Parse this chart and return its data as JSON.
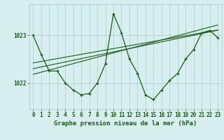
{
  "title": "Graphe pression niveau de la mer (hPa)",
  "bg_color": "#d6eeed",
  "grid_color": "#b0d4d0",
  "line_color": "#1a5c1a",
  "x_values": [
    0,
    1,
    2,
    3,
    4,
    5,
    6,
    7,
    8,
    9,
    10,
    11,
    12,
    13,
    14,
    15,
    16,
    17,
    18,
    19,
    20,
    21,
    22,
    23
  ],
  "main_data": [
    1023.0,
    1022.6,
    1022.25,
    1022.25,
    1022.0,
    1021.85,
    1021.75,
    1021.78,
    1022.0,
    1022.4,
    1023.45,
    1023.05,
    1022.5,
    1022.2,
    1021.75,
    1021.65,
    1021.85,
    1022.05,
    1022.2,
    1022.5,
    1022.7,
    1023.05,
    1023.1,
    1022.95
  ],
  "trend1": [
    1022.42,
    1022.45,
    1022.48,
    1022.51,
    1022.54,
    1022.57,
    1022.6,
    1022.63,
    1022.66,
    1022.69,
    1022.72,
    1022.75,
    1022.78,
    1022.81,
    1022.84,
    1022.87,
    1022.9,
    1022.93,
    1022.96,
    1022.99,
    1023.02,
    1023.05,
    1023.08,
    1023.11
  ],
  "trend2": [
    1022.3,
    1022.335,
    1022.37,
    1022.405,
    1022.44,
    1022.475,
    1022.51,
    1022.545,
    1022.58,
    1022.615,
    1022.65,
    1022.685,
    1022.72,
    1022.755,
    1022.79,
    1022.825,
    1022.86,
    1022.895,
    1022.93,
    1022.965,
    1023.0,
    1023.035,
    1023.07,
    1023.105
  ],
  "trend3": [
    1022.18,
    1022.225,
    1022.27,
    1022.315,
    1022.36,
    1022.405,
    1022.45,
    1022.495,
    1022.54,
    1022.585,
    1022.63,
    1022.675,
    1022.72,
    1022.765,
    1022.81,
    1022.855,
    1022.9,
    1022.945,
    1022.99,
    1023.035,
    1023.08,
    1023.125,
    1023.17,
    1023.215
  ],
  "ylim": [
    1021.45,
    1023.65
  ],
  "yticks": [
    1022.0,
    1023.0
  ],
  "xlim": [
    -0.5,
    23.5
  ],
  "tick_fontsize": 5.5,
  "title_fontsize": 6.5
}
